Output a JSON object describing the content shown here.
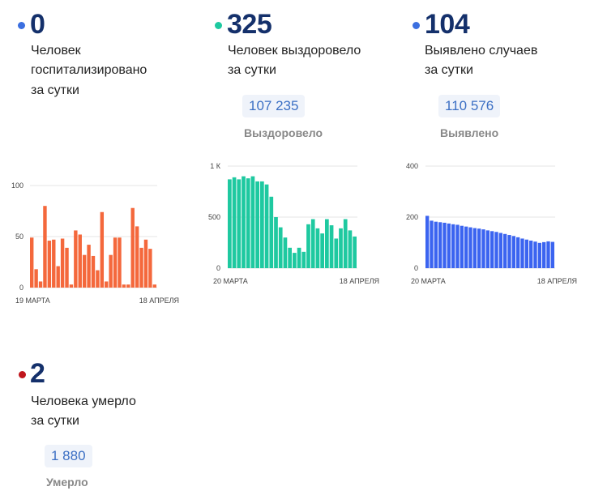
{
  "cards": [
    {
      "id": "hospitalized",
      "value": "0",
      "desc_line1": "Человек",
      "desc_line2": "госпитализировано",
      "desc_line3": "за сутки",
      "dot_color": "#3b6fe0"
    },
    {
      "id": "recovered",
      "value": "325",
      "desc_line1": "Человек выздоровело",
      "desc_line2": "за сутки",
      "total": "107 235",
      "total_label": "Выздоровело",
      "dot_color": "#1ec9a0"
    },
    {
      "id": "cases",
      "value": "104",
      "desc_line1": "Выявлено случаев",
      "desc_line2": "за сутки",
      "total": "110 576",
      "total_label": "Выявлено",
      "dot_color": "#3b6fe0"
    },
    {
      "id": "deaths",
      "value": "2",
      "desc_line1": "Человека умерло",
      "desc_line2": "за сутки",
      "total": "1 880",
      "total_label": "Умерло",
      "dot_color": "#c0161d"
    }
  ],
  "chart_data": [
    {
      "type": "bar",
      "id": "hospitalized",
      "color": "#f4683c",
      "ylim": [
        0,
        100
      ],
      "yticks": [
        "0",
        "50",
        "100"
      ],
      "ytick_values": [
        0,
        50,
        100
      ],
      "x_start_label": "19 МАРТА",
      "x_end_label": "18 АПРЕЛЯ",
      "values": [
        49,
        18,
        6,
        80,
        46,
        47,
        21,
        48,
        39,
        3,
        56,
        52,
        32,
        42,
        31,
        17,
        74,
        6,
        32,
        49,
        49,
        3,
        3,
        78,
        60,
        39,
        47,
        38,
        3
      ]
    },
    {
      "type": "bar",
      "id": "recovered",
      "color": "#1ec9a0",
      "ylim": [
        0,
        1000
      ],
      "yticks": [
        "0",
        "500",
        "1 К"
      ],
      "ytick_values": [
        0,
        500,
        1000
      ],
      "x_start_label": "20 МАРТА",
      "x_end_label": "18 АПРЕЛЯ",
      "values": [
        870,
        890,
        870,
        900,
        880,
        900,
        850,
        850,
        820,
        700,
        500,
        400,
        300,
        200,
        150,
        200,
        160,
        430,
        480,
        390,
        340,
        480,
        420,
        290,
        390,
        480,
        370,
        310
      ]
    },
    {
      "type": "bar",
      "id": "cases",
      "color": "#3b64f0",
      "ylim": [
        0,
        400
      ],
      "yticks": [
        "0",
        "200",
        "400"
      ],
      "ytick_values": [
        0,
        200,
        400
      ],
      "x_start_label": "20 МАРТА",
      "x_end_label": "18 АПРЕЛЯ",
      "values": [
        205,
        186,
        182,
        180,
        178,
        175,
        172,
        170,
        166,
        163,
        160,
        157,
        155,
        152,
        148,
        145,
        142,
        138,
        134,
        130,
        126,
        121,
        116,
        112,
        108,
        104,
        99,
        102,
        105,
        103
      ]
    }
  ]
}
